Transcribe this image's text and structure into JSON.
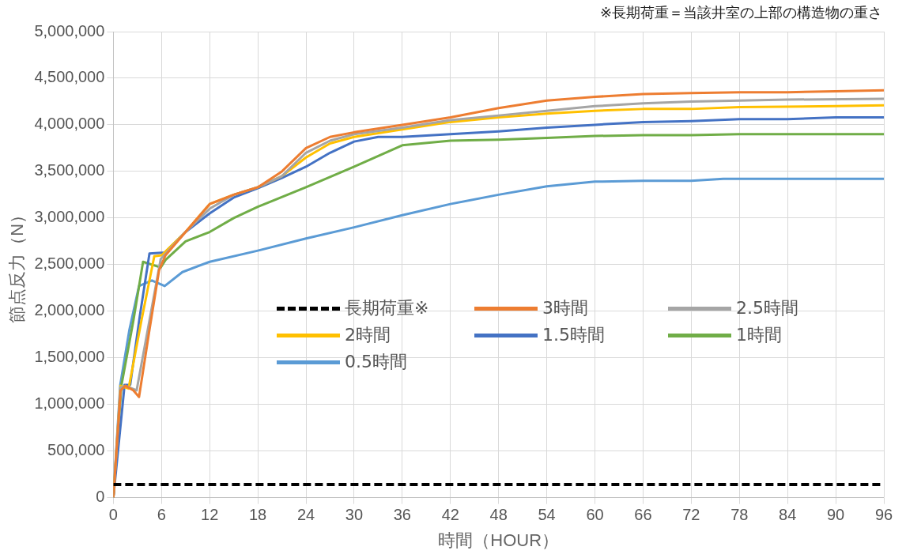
{
  "chart_data": {
    "type": "line",
    "xlabel": "時間（HOUR）",
    "ylabel": "節点反力（N）",
    "annotations": [
      "※長期荷重＝当該井室の上部の構造物の重さ"
    ],
    "xlim": [
      0,
      96
    ],
    "xticks": [
      0,
      6,
      12,
      18,
      24,
      30,
      36,
      42,
      48,
      54,
      60,
      66,
      72,
      78,
      84,
      90,
      96
    ],
    "ylim": [
      0,
      5000000
    ],
    "yticks": [
      {
        "value": 0,
        "label": "0"
      },
      {
        "value": 500000,
        "label": "500,000"
      },
      {
        "value": 1000000,
        "label": "1,000,000"
      },
      {
        "value": 1500000,
        "label": "1,500,000"
      },
      {
        "value": 2000000,
        "label": "2,000,000"
      },
      {
        "value": 2500000,
        "label": "2,500,000"
      },
      {
        "value": 3000000,
        "label": "3,000,000"
      },
      {
        "value": 3500000,
        "label": "3,500,000"
      },
      {
        "value": 4000000,
        "label": "4,000,000"
      },
      {
        "value": 4500000,
        "label": "4,500,000"
      },
      {
        "value": 5000000,
        "label": "5,000,000"
      }
    ],
    "grid": true,
    "legend": "center",
    "marker": "none",
    "series": [
      {
        "name": "長期荷重※",
        "color": "#000000",
        "line_style": "dashed",
        "x": [
          0,
          96
        ],
        "values": [
          140000,
          140000
        ]
      },
      {
        "name": "3時間",
        "color": "#ed7d31",
        "line_style": "solid",
        "x": [
          0,
          0.9,
          1.5,
          2.5,
          3.2,
          4.5,
          5.7,
          6.5,
          9,
          12,
          15,
          18,
          21,
          24,
          27,
          30,
          36,
          42,
          48,
          54,
          60,
          66,
          72,
          78,
          84,
          90,
          96
        ],
        "values": [
          0,
          1150000,
          1200000,
          1150000,
          1080000,
          1800000,
          2440000,
          2600000,
          2850000,
          3150000,
          3250000,
          3330000,
          3500000,
          3750000,
          3870000,
          3920000,
          4000000,
          4080000,
          4180000,
          4260000,
          4300000,
          4330000,
          4340000,
          4350000,
          4350000,
          4360000,
          4370000
        ]
      },
      {
        "name": "2.5時間",
        "color": "#a5a5a5",
        "line_style": "solid",
        "x": [
          0,
          0.9,
          1.5,
          2.9,
          4.5,
          5.9,
          9,
          12,
          15,
          18,
          21,
          24,
          27,
          30,
          36,
          42,
          48,
          54,
          60,
          66,
          72,
          78,
          84,
          96
        ],
        "values": [
          0,
          1180000,
          1200000,
          1150000,
          1900000,
          2560000,
          2850000,
          3100000,
          3250000,
          3330000,
          3450000,
          3700000,
          3830000,
          3900000,
          3970000,
          4050000,
          4100000,
          4150000,
          4200000,
          4230000,
          4250000,
          4260000,
          4270000,
          4280000
        ]
      },
      {
        "name": "2時間",
        "color": "#ffc000",
        "line_style": "solid",
        "x": [
          0,
          0.9,
          1.9,
          3.5,
          5.1,
          6,
          9,
          12,
          15,
          18,
          21,
          24,
          27,
          30,
          36,
          42,
          48,
          54,
          60,
          66,
          72,
          78,
          90,
          96
        ],
        "values": [
          0,
          1200000,
          1170000,
          1900000,
          2590000,
          2600000,
          2850000,
          3150000,
          3250000,
          3330000,
          3450000,
          3650000,
          3800000,
          3870000,
          3950000,
          4030000,
          4080000,
          4120000,
          4150000,
          4170000,
          4170000,
          4190000,
          4200000,
          4210000
        ]
      },
      {
        "name": "1.5時間",
        "color": "#4472c4",
        "line_style": "solid",
        "x": [
          0,
          1.4,
          2.1,
          3.3,
          4.5,
          6.4,
          9,
          12,
          15,
          18,
          21,
          24,
          27,
          30,
          33,
          36,
          42,
          48,
          54,
          60,
          66,
          72,
          78,
          84,
          90,
          96
        ],
        "values": [
          0,
          1210000,
          1210000,
          1950000,
          2620000,
          2630000,
          2850000,
          3050000,
          3220000,
          3320000,
          3430000,
          3550000,
          3700000,
          3820000,
          3870000,
          3870000,
          3900000,
          3930000,
          3970000,
          4000000,
          4030000,
          4040000,
          4060000,
          4060000,
          4080000,
          4080000
        ]
      },
      {
        "name": "1時間",
        "color": "#70ad47",
        "line_style": "solid",
        "x": [
          0,
          1,
          2.5,
          3.7,
          5.9,
          6.5,
          9,
          12,
          15,
          18,
          24,
          30,
          36,
          42,
          48,
          54,
          60,
          66,
          72,
          78,
          96
        ],
        "values": [
          0,
          1200000,
          1900000,
          2530000,
          2470000,
          2550000,
          2750000,
          2850000,
          3000000,
          3120000,
          3330000,
          3550000,
          3780000,
          3830000,
          3840000,
          3860000,
          3880000,
          3890000,
          3890000,
          3900000,
          3900000
        ]
      },
      {
        "name": "0.5時間",
        "color": "#5b9bd5",
        "line_style": "solid",
        "x": [
          0,
          0.86,
          2,
          3.2,
          4.8,
          6.4,
          8.6,
          12,
          18,
          24,
          30,
          36,
          42,
          48,
          54,
          60,
          66,
          72,
          76,
          96
        ],
        "values": [
          0,
          1210000,
          1800000,
          2270000,
          2330000,
          2270000,
          2420000,
          2530000,
          2650000,
          2780000,
          2900000,
          3030000,
          3150000,
          3250000,
          3340000,
          3390000,
          3400000,
          3400000,
          3420000,
          3420000
        ]
      }
    ]
  }
}
